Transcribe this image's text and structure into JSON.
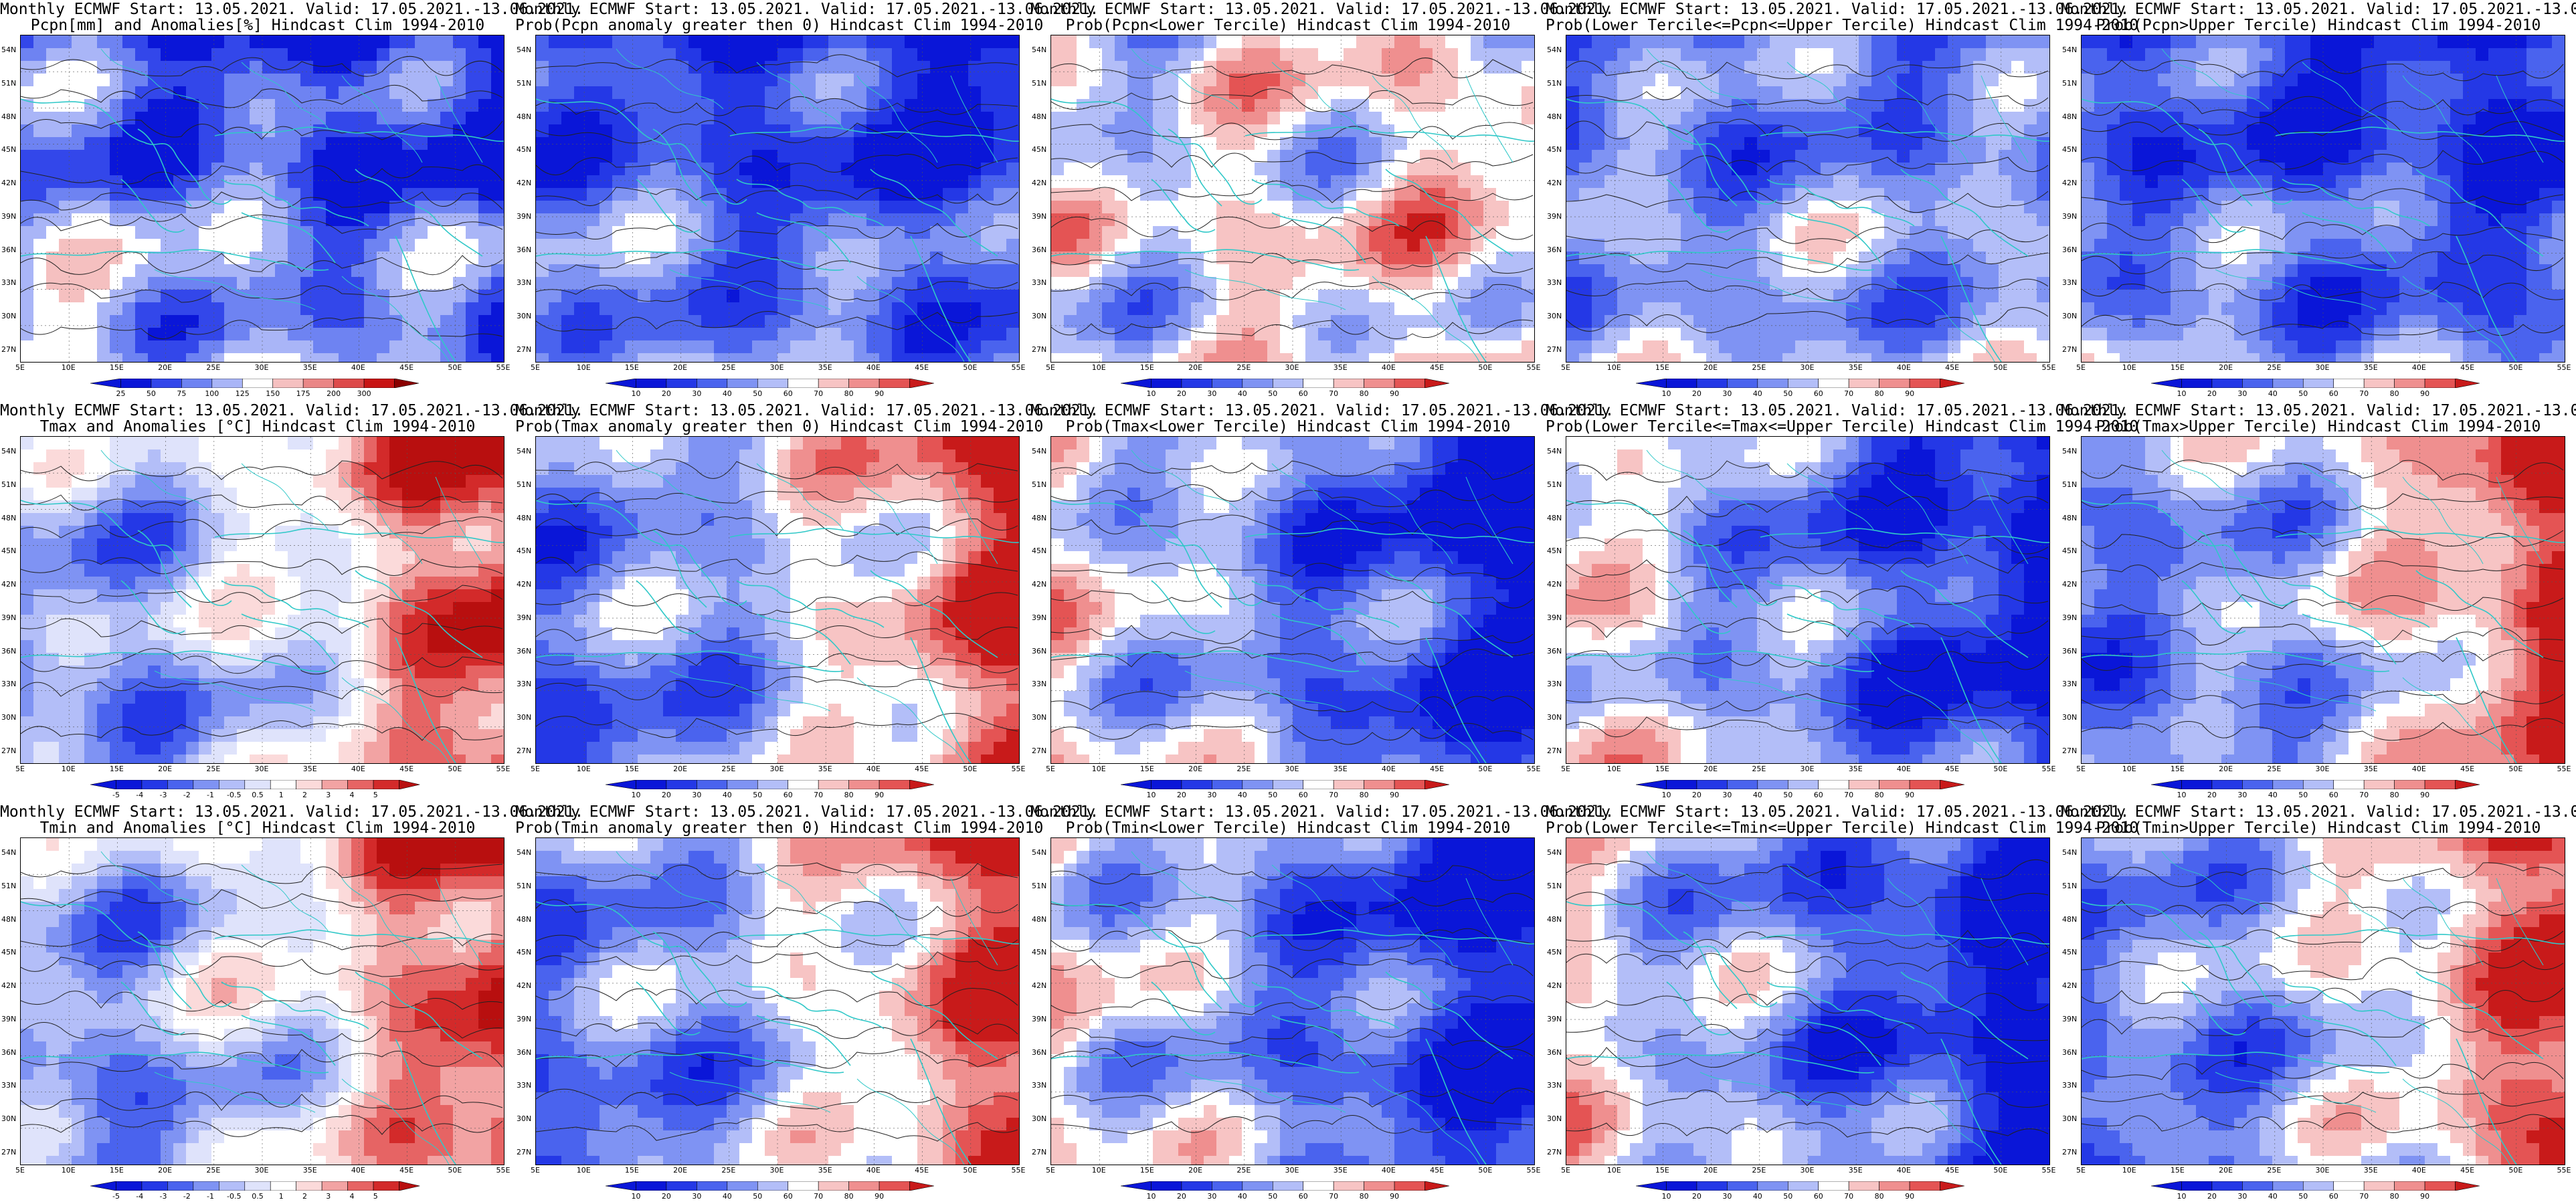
{
  "header_line": "Monthly ECMWF Start: 13.05.2021. Valid: 17.05.2021.-13.06.2021.",
  "lat_labels": [
    "54N",
    "51N",
    "48N",
    "45N",
    "42N",
    "39N",
    "36N",
    "33N",
    "30N",
    "27N"
  ],
  "lon_labels": [
    "5E",
    "10E",
    "15E",
    "20E",
    "25E",
    "30E",
    "35E",
    "40E",
    "45E",
    "50E",
    "55E"
  ],
  "colorbars": {
    "precip": [
      "25",
      "50",
      "75",
      "100",
      "125",
      "150",
      "175",
      "200",
      "300"
    ],
    "anom": [
      "-5",
      "-4",
      "-3",
      "-2",
      "-1",
      "-0.5",
      "0.5",
      "1",
      "2",
      "3",
      "4",
      "5"
    ],
    "prob": [
      "10",
      "20",
      "30",
      "40",
      "50",
      "60",
      "70",
      "80",
      "90"
    ]
  },
  "colors": {
    "map_blue": "#1a2ee0",
    "map_red": "#e01818",
    "coast": "#30c8c8",
    "contour": "#222222"
  },
  "panels": [
    {
      "line2": "Pcpn[mm] and Anomalies[%] Hindcast Clim 1994-2010",
      "cbar": "precip",
      "tone": "blue-heavy"
    },
    {
      "line2": "Prob(Pcpn anomaly greater then 0) Hindcast Clim 1994-2010",
      "cbar": "prob",
      "tone": "blue-heavy"
    },
    {
      "line2": "Prob(Pcpn<Lower Tercile) Hindcast Clim 1994-2010",
      "cbar": "prob",
      "tone": "mixed-red"
    },
    {
      "line2": "Prob(Lower Tercile<=Pcpn<=Upper Tercile) Hindcast Clim 1994-2010",
      "cbar": "prob",
      "tone": "blue-light"
    },
    {
      "line2": "Prob(Pcpn>Upper Tercile) Hindcast Clim 1994-2010",
      "cbar": "prob",
      "tone": "blue-heavy"
    },
    {
      "line2": "Tmax and Anomalies [°C] Hindcast Clim 1994-2010",
      "cbar": "anom",
      "tone": "red-east"
    },
    {
      "line2": "Prob(Tmax anomaly greater then 0) Hindcast Clim 1994-2010",
      "cbar": "prob",
      "tone": "red-east"
    },
    {
      "line2": "Prob(Tmax<Lower Tercile) Hindcast Clim 1994-2010",
      "cbar": "prob",
      "tone": "blue-east"
    },
    {
      "line2": "Prob(Lower Tercile<=Tmax<=Upper Tercile) Hindcast Clim 1994-2010",
      "cbar": "prob",
      "tone": "blue-east"
    },
    {
      "line2": "Prob(Tmax>Upper Tercile) Hindcast Clim 1994-2010",
      "cbar": "prob",
      "tone": "red-east"
    },
    {
      "line2": "Tmin and Anomalies [°C] Hindcast Clim 1994-2010",
      "cbar": "anom",
      "tone": "red-east"
    },
    {
      "line2": "Prob(Tmin anomaly greater then 0) Hindcast Clim 1994-2010",
      "cbar": "prob",
      "tone": "red-east"
    },
    {
      "line2": "Prob(Tmin<Lower Tercile) Hindcast Clim 1994-2010",
      "cbar": "prob",
      "tone": "blue-east"
    },
    {
      "line2": "Prob(Lower Tercile<=Tmin<=Upper Tercile) Hindcast Clim 1994-2010",
      "cbar": "prob",
      "tone": "blue-east"
    },
    {
      "line2": "Prob(Tmin>Upper Tercile) Hindcast Clim 1994-2010",
      "cbar": "prob",
      "tone": "red-east"
    }
  ]
}
